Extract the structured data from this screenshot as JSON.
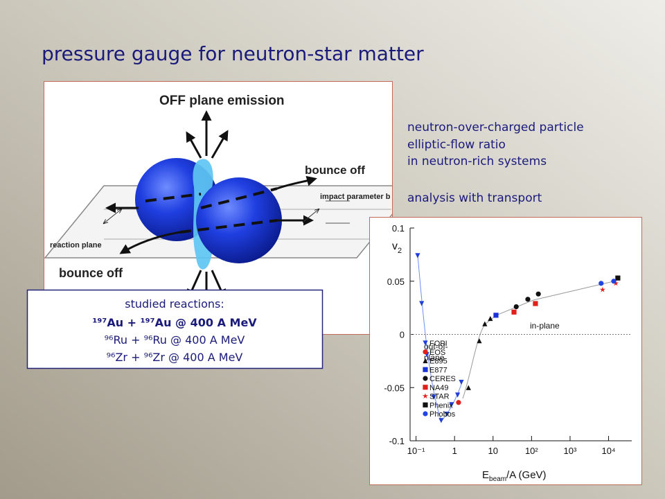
{
  "title": "pressure gauge for neutron-star matter",
  "text_lines": [
    "neutron-over-charged particle",
    "elliptic-flow ratio",
    "in neutron-rich systems",
    "analysis with transport"
  ],
  "diagram": {
    "labels": [
      "OFF plane emission",
      "bounce off",
      "impact parameter b",
      "reaction plane",
      "bounce off"
    ]
  },
  "reactions": {
    "heading": "studied reactions:",
    "lines": [
      "¹⁹⁷Au + ¹⁹⁷Au @ 400 A MeV",
      "⁹⁶Ru + ⁹⁶Ru @ 400 A MeV",
      "⁹⁶Zr + ⁹⁶Zr @ 400 A MeV"
    ]
  },
  "chart_data": {
    "type": "scatter",
    "x_label": "E",
    "x_label_sub": "beam",
    "x_label_rest": "/A (GeV)",
    "y_label": "v",
    "y_label_sub": "2",
    "log_x": true,
    "xlim": [
      0.07,
      40000
    ],
    "ylim": [
      -0.1,
      0.1
    ],
    "xticks": [
      {
        "value": 0.1,
        "label": "10⁻¹"
      },
      1,
      10,
      {
        "value": 100,
        "label": "10²"
      },
      {
        "value": 1000,
        "label": "10³"
      },
      {
        "value": 10000,
        "label": "10⁴"
      }
    ],
    "yticks": [
      0.1,
      0.05,
      0,
      -0.05,
      -0.1
    ],
    "hline": 0,
    "annotations": [
      "in-plane",
      "out-of-",
      "plane"
    ],
    "series": [
      {
        "name": "FOPI",
        "color": "#1f3fd8",
        "marker": "triangle-down",
        "x": [
          0.11,
          0.14,
          0.19,
          0.29,
          0.45,
          0.63,
          0.84,
          1.2,
          1.5
        ],
        "values": [
          0.074,
          0.029,
          -0.019,
          -0.059,
          -0.081,
          -0.075,
          -0.066,
          -0.057,
          -0.045
        ]
      },
      {
        "name": "EOS",
        "color": "#e0201b",
        "marker": "circle",
        "x": [
          1.27
        ],
        "values": [
          -0.064
        ]
      },
      {
        "name": "E895",
        "color": "#111111",
        "marker": "triangle-up",
        "x": [
          2.3,
          4.4,
          6.1,
          8.5
        ],
        "values": [
          -0.05,
          -0.006,
          0.01,
          0.015
        ]
      },
      {
        "name": "E877",
        "color": "#1a33d8",
        "marker": "square",
        "x": [
          11.9
        ],
        "values": [
          0.018
        ]
      },
      {
        "name": "CERES",
        "color": "#111111",
        "marker": "circle",
        "x": [
          40,
          80,
          150
        ],
        "values": [
          0.026,
          0.033,
          0.038
        ]
      },
      {
        "name": "NA49",
        "color": "#e0201b",
        "marker": "square",
        "x": [
          35,
          126
        ],
        "values": [
          0.021,
          0.029
        ]
      },
      {
        "name": "STAR",
        "color": "#e0201b",
        "marker": "star",
        "x": [
          7000,
          15400
        ],
        "values": [
          0.042,
          0.048
        ]
      },
      {
        "name": "Phenix",
        "color": "#111111",
        "marker": "square",
        "x": [
          17400
        ],
        "values": [
          0.053
        ]
      },
      {
        "name": "Phobos",
        "color": "#2244e0",
        "marker": "circle",
        "x": [
          6400,
          13600
        ],
        "values": [
          0.048,
          0.05
        ]
      }
    ]
  }
}
